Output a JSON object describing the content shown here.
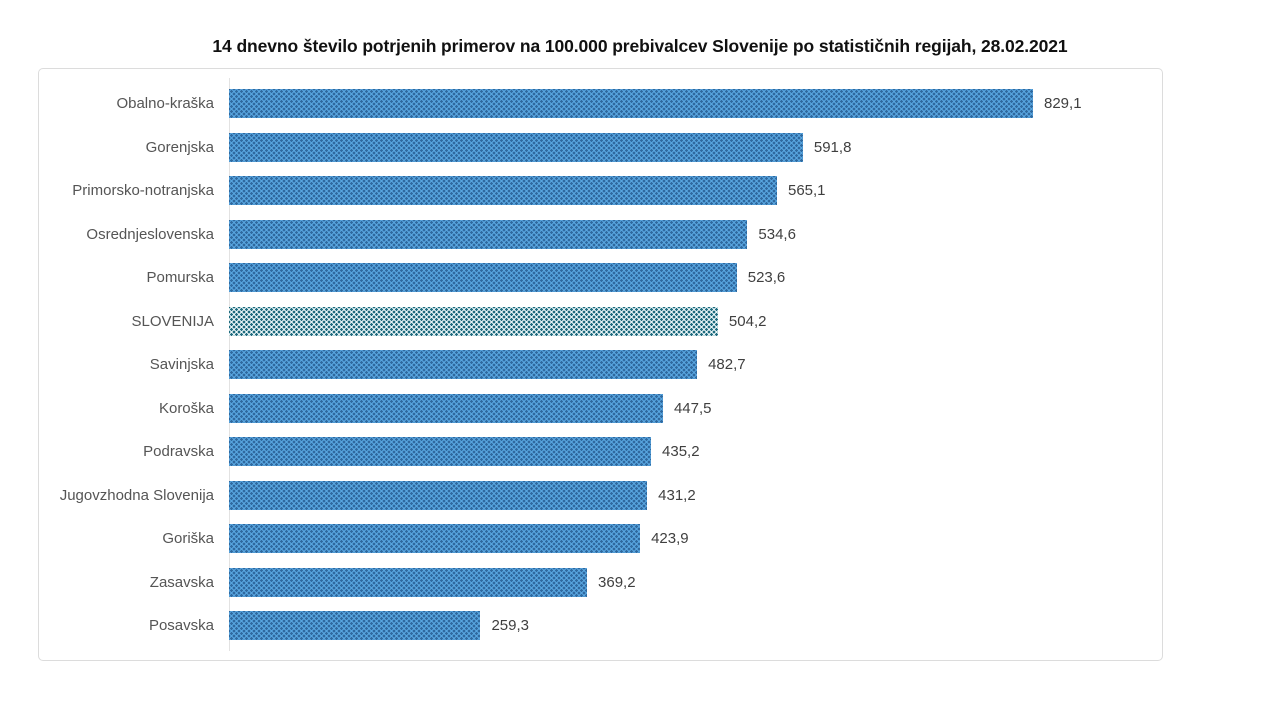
{
  "title": "14 dnevno število potrjenih primerov na 100.000 prebivalcev Slovenije po statističnih regijah, 28.02.2021",
  "chart_data": {
    "type": "bar",
    "orientation": "horizontal",
    "title": "14 dnevno število potrjenih primerov na 100.000 prebivalcev Slovenije po statističnih regijah, 28.02.2021",
    "categories": [
      "Obalno-kraška",
      "Gorenjska",
      "Primorsko-notranjska",
      "Osrednjeslovenska",
      "Pomurska",
      "SLOVENIJA",
      "Savinjska",
      "Koroška",
      "Podravska",
      "Jugovzhodna Slovenija",
      "Goriška",
      "Zasavska",
      "Posavska"
    ],
    "values": [
      829.1,
      591.8,
      565.1,
      534.6,
      523.6,
      504.2,
      482.7,
      447.5,
      435.2,
      431.2,
      423.9,
      369.2,
      259.3
    ],
    "value_labels": [
      "829,1",
      "591,8",
      "565,1",
      "534,6",
      "523,6",
      "504,2",
      "482,7",
      "447,5",
      "435,2",
      "431,2",
      "423,9",
      "369,2",
      "259,3"
    ],
    "highlight_category": "SLOVENIJA",
    "highlight_index": 5,
    "data_labels": true,
    "legend": "none",
    "gridlines": false,
    "xlabel": "",
    "ylabel": "",
    "sort_order": "descending",
    "colors": {
      "bar_base": "#58a5df",
      "bar_dot": "#30699f",
      "highlight_base": "#eaf6f8",
      "highlight_dot": "#1f6b7e",
      "label_text": "#555555",
      "value_text": "#3f3f3f",
      "chart_border": "#dcdcdc"
    }
  }
}
